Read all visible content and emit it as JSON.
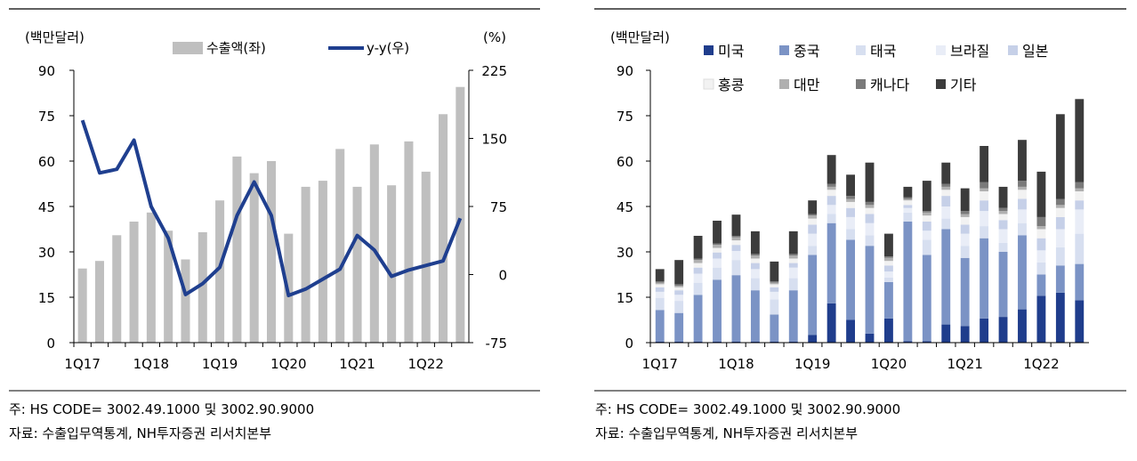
{
  "colors": {
    "bar_gray": "#bfbfbf",
    "line_blue": "#1f3f8f",
    "stack": [
      "#1f3d8c",
      "#7b93c5",
      "#d7dff0",
      "#e9edf7",
      "#c6d0e8",
      "#f2f2f2",
      "#b0b0b0",
      "#7a7a7a",
      "#3c3c3c"
    ]
  },
  "chart_data": [
    {
      "type": "bar",
      "left_unit_label": "(백만달러)",
      "right_unit_label": "(%)",
      "legend": {
        "bar": "수출액(좌)",
        "line": "y-y(우)"
      },
      "categories": [
        "1Q17",
        "2Q17",
        "3Q17",
        "4Q17",
        "1Q18",
        "2Q18",
        "3Q18",
        "4Q18",
        "1Q19",
        "2Q19",
        "3Q19",
        "4Q19",
        "1Q20",
        "2Q20",
        "3Q20",
        "4Q20",
        "1Q21",
        "2Q21",
        "3Q21",
        "4Q21",
        "1Q22",
        "2Q22",
        "3Q22"
      ],
      "x_tick_labels": [
        "1Q17",
        "1Q18",
        "1Q19",
        "1Q20",
        "1Q21",
        "1Q22"
      ],
      "ylim_left": [
        0,
        90
      ],
      "yticks_left": [
        "0",
        "15",
        "30",
        "45",
        "60",
        "75",
        "90"
      ],
      "ylim_right": [
        -75,
        225
      ],
      "yticks_right": [
        "-75",
        "0",
        "75",
        "150",
        "225"
      ],
      "series": [
        {
          "name": "수출액(좌)",
          "axis": "left",
          "kind": "bar",
          "values": [
            24.5,
            27,
            35.5,
            40,
            43,
            37,
            27.5,
            36.5,
            47,
            61.5,
            56,
            60,
            36,
            51.5,
            53.5,
            64,
            51.5,
            65.5,
            52,
            66.5,
            56.5,
            75.5,
            84.5
          ]
        },
        {
          "name": "y-y(우)",
          "axis": "right",
          "kind": "line",
          "values": [
            170,
            112,
            116,
            148,
            75,
            40,
            -22,
            -10,
            8,
            65,
            102,
            65,
            -23,
            -16,
            -5,
            6,
            43,
            27,
            -2,
            5,
            10,
            15,
            62
          ]
        }
      ],
      "grid": false
    },
    {
      "type": "bar",
      "stacked": true,
      "left_unit_label": "(백만달러)",
      "categories": [
        "1Q17",
        "2Q17",
        "3Q17",
        "4Q17",
        "1Q18",
        "2Q18",
        "3Q18",
        "4Q18",
        "1Q19",
        "2Q19",
        "3Q19",
        "4Q19",
        "1Q20",
        "2Q20",
        "3Q20",
        "4Q20",
        "1Q21",
        "2Q21",
        "3Q21",
        "4Q21",
        "1Q22",
        "2Q22",
        "3Q22"
      ],
      "x_tick_labels": [
        "1Q17",
        "1Q18",
        "1Q19",
        "1Q20",
        "1Q21",
        "1Q22"
      ],
      "ylim": [
        0,
        90
      ],
      "yticks": [
        "0",
        "15",
        "30",
        "45",
        "60",
        "75",
        "90"
      ],
      "series": [
        {
          "name": "미국",
          "values": [
            0.3,
            0.3,
            0.3,
            0.3,
            0.3,
            0.3,
            0.3,
            0.3,
            2.5,
            13,
            7.5,
            3,
            8,
            0.5,
            0.5,
            6,
            5.5,
            8,
            8.5,
            11,
            15.5,
            16.5,
            14
          ]
        },
        {
          "name": "중국",
          "values": [
            10.5,
            9.5,
            15.5,
            20.5,
            22,
            17,
            9,
            17,
            26.5,
            26.5,
            26.5,
            29,
            12,
            39.5,
            28.5,
            31.5,
            22.5,
            26.5,
            21.5,
            24.5,
            7,
            9,
            12
          ]
        },
        {
          "name": "태국",
          "values": [
            4,
            4,
            4,
            4,
            5,
            4,
            5,
            4,
            3,
            3,
            3.5,
            3.5,
            1.5,
            3,
            5,
            3.5,
            4,
            4,
            3,
            4,
            4,
            6,
            10
          ]
        },
        {
          "name": "브라질",
          "values": [
            2,
            2,
            3,
            3,
            3,
            3,
            2.5,
            3.5,
            4,
            3,
            4,
            4,
            2,
            1.5,
            3,
            4,
            4,
            5,
            4.5,
            4.5,
            4,
            6,
            8
          ]
        },
        {
          "name": "일본",
          "values": [
            1.5,
            1.5,
            2,
            2,
            2,
            2,
            1.5,
            1.5,
            3,
            3,
            3,
            3,
            2,
            1,
            3,
            3.5,
            3,
            3.5,
            3,
            3.5,
            4,
            4,
            3
          ]
        },
        {
          "name": "홍콩",
          "values": [
            1,
            1,
            1.5,
            1.5,
            1.5,
            1.5,
            1,
            1.5,
            2,
            2,
            2,
            2,
            1.5,
            1.5,
            2,
            2,
            2.5,
            3,
            2,
            3,
            3,
            3,
            3
          ]
        },
        {
          "name": "대만",
          "values": [
            0.5,
            0.5,
            1,
            1,
            1,
            1,
            0.5,
            1,
            1,
            1,
            1,
            1,
            1,
            0.5,
            1,
            1,
            1,
            1,
            1,
            1,
            1,
            1,
            1
          ]
        },
        {
          "name": "캐나다",
          "values": [
            0.5,
            0.5,
            0.5,
            0.5,
            0.5,
            0.5,
            0.5,
            0.5,
            0.5,
            1,
            1,
            1,
            0.5,
            0.5,
            0.5,
            1,
            1,
            2,
            1,
            2,
            3,
            2,
            2
          ]
        },
        {
          "name": "기타",
          "values": [
            4,
            8,
            7.5,
            7.5,
            7,
            7.5,
            6.5,
            7.5,
            4.5,
            9.5,
            7,
            13,
            7.5,
            3.5,
            10,
            7,
            7.5,
            12,
            7,
            13.5,
            15,
            28,
            27.5
          ]
        }
      ],
      "grid": false
    }
  ],
  "notes": {
    "left_line1": "주: HS CODE= 3002.49.1000  및  3002.90.9000",
    "left_line2": "자료:  수출입무역통계, NH투자증권  리서치본부",
    "right_line1": "주: HS CODE= 3002.49.1000  및  3002.90.9000",
    "right_line2": "자료:  수출입무역통계, NH투자증권  리서치본부"
  }
}
